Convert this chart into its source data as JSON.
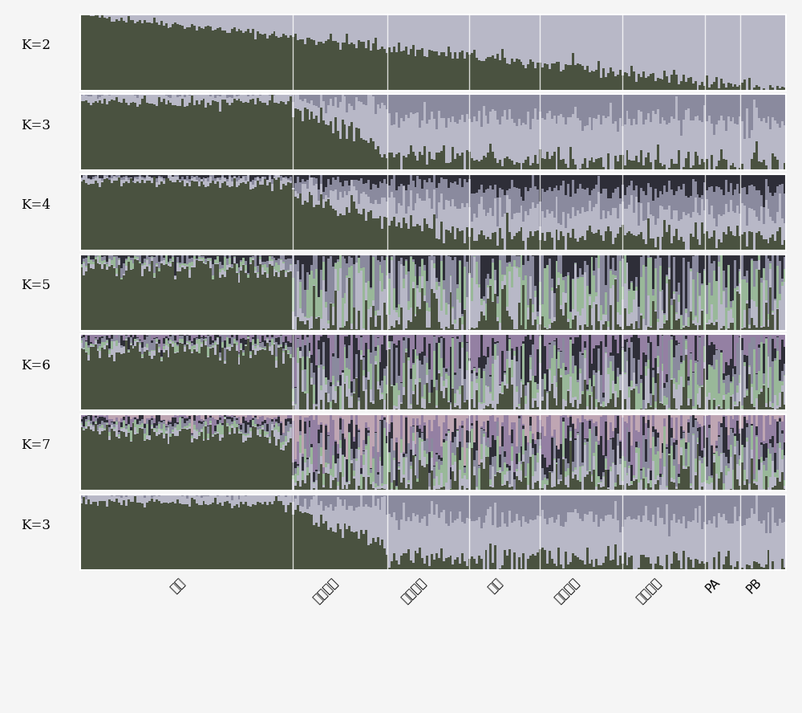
{
  "rows": [
    "K=2",
    "K=3",
    "K=4",
    "K=5",
    "K=6",
    "K=7",
    "K=3"
  ],
  "x_labels": [
    "热带",
    "塘四平头",
    "袁华马齿",
    "瑞得",
    "兰卡斯特",
    "旅大红骨",
    "PA",
    "PB"
  ],
  "n_individuals": 300,
  "group_boundaries": [
    0,
    90,
    130,
    165,
    195,
    230,
    265,
    280,
    300
  ],
  "colors": {
    "dark_green": "#4a5240",
    "light_gray": "#b8b8c8",
    "medium_gray": "#8a8a9a",
    "dark_gray": "#2a2a3a",
    "light_green": "#9ab89a",
    "purple_gray": "#9080a0",
    "very_light": "#d0d0e0"
  },
  "background_color": "#f0f0f0",
  "panel_bg": "#e8e8e8",
  "fig_width": 10.0,
  "fig_height": 8.88,
  "label_fontsize": 11,
  "k_label_fontsize": 12
}
